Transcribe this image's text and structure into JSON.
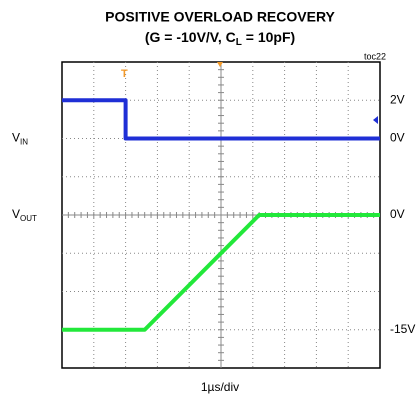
{
  "chart_data": {
    "type": "scope",
    "title": "POSITIVE OVERLOAD RECOVERY",
    "subtitle": [
      "(G = -10V/V, C",
      "L",
      " = 10pF)"
    ],
    "note": "toc22",
    "x_label": "1µs/div",
    "xlim": [
      0,
      10
    ],
    "series": [
      {
        "name": "V",
        "name_subscript": "IN",
        "color": "#1f2fd6",
        "x": [
          0,
          2,
          2,
          10
        ],
        "values": [
          2,
          2,
          0,
          0
        ],
        "ylim": [
          -12,
          4
        ],
        "yticks": [
          {
            "value": 2,
            "label": "2V"
          },
          {
            "value": 0,
            "label": "0V"
          }
        ]
      },
      {
        "name": "V",
        "name_subscript": "OUT",
        "color": "#22e83a",
        "x": [
          0,
          2.6,
          6.2,
          10
        ],
        "values": [
          -15,
          -15,
          0,
          0
        ],
        "ylim": [
          -20,
          20
        ],
        "yticks": [
          {
            "value": 0,
            "label": "0V"
          },
          {
            "value": -15,
            "label": "-15V"
          }
        ]
      }
    ]
  }
}
